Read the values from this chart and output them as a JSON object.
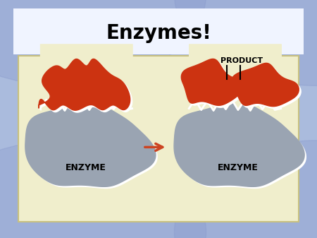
{
  "title": "Enzymes!",
  "title_fontsize": 20,
  "title_fontweight": "bold",
  "bg_outer": "#aabbdd",
  "bg_slide": "#f0f4ff",
  "bg_diagram": "#f0eecc",
  "enzyme_color": "#9aa4b2",
  "enzyme_border": "#ffffff",
  "substrate_color": "#cc3311",
  "substrate_border": "#ffffff",
  "arrow_color": "#cc4422",
  "label_enzyme": "ENZYME",
  "label_product": "PRODUCT",
  "enzyme_fs": 9,
  "product_fs": 8,
  "fig_w": 4.5,
  "fig_h": 3.37,
  "dpi": 100
}
